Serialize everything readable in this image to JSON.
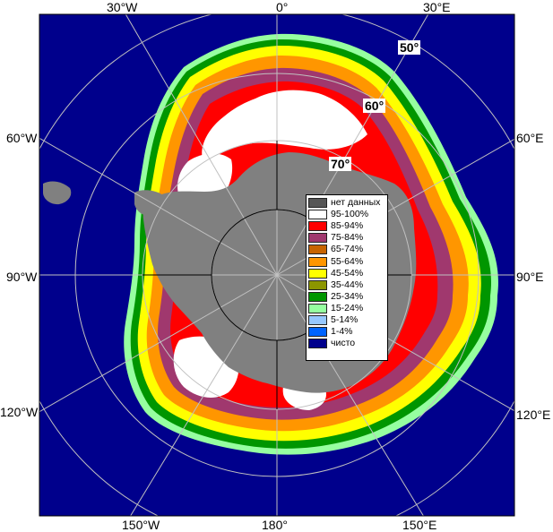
{
  "lon_labels": {
    "w30": "30°W",
    "zero": "0°",
    "e30": "30°E",
    "w60": "60°W",
    "e60": "60°E",
    "w90": "90°W",
    "e90": "90°E",
    "w120": "120°W",
    "e120": "120°E",
    "w150": "150°W",
    "l180": "180°",
    "e150": "150°E"
  },
  "lat_labels": {
    "l50": "50°",
    "l60": "60°",
    "l70": "70°"
  },
  "legend": [
    {
      "label": "нет данных",
      "color": "#555555"
    },
    {
      "label": "95-100%",
      "color": "#ffffff"
    },
    {
      "label": "85-94%",
      "color": "#ff0000"
    },
    {
      "label": "75-84%",
      "color": "#a0386e"
    },
    {
      "label": "65-74%",
      "color": "#c86400"
    },
    {
      "label": "55-64%",
      "color": "#ff9600"
    },
    {
      "label": "45-54%",
      "color": "#ffff00"
    },
    {
      "label": "35-44%",
      "color": "#8c9600"
    },
    {
      "label": "25-34%",
      "color": "#009600"
    },
    {
      "label": "15-24%",
      "color": "#96ffa0"
    },
    {
      "label": "5-14%",
      "color": "#96c8ff"
    },
    {
      "label": "1-4%",
      "color": "#0064ff"
    },
    {
      "label": "чисто",
      "color": "#00008c"
    }
  ],
  "colors": {
    "ocean": "#00008c",
    "land": "#808080",
    "land_dark": "#6e6e6e",
    "grid": "#c0c0c0",
    "frame": "#000000"
  }
}
